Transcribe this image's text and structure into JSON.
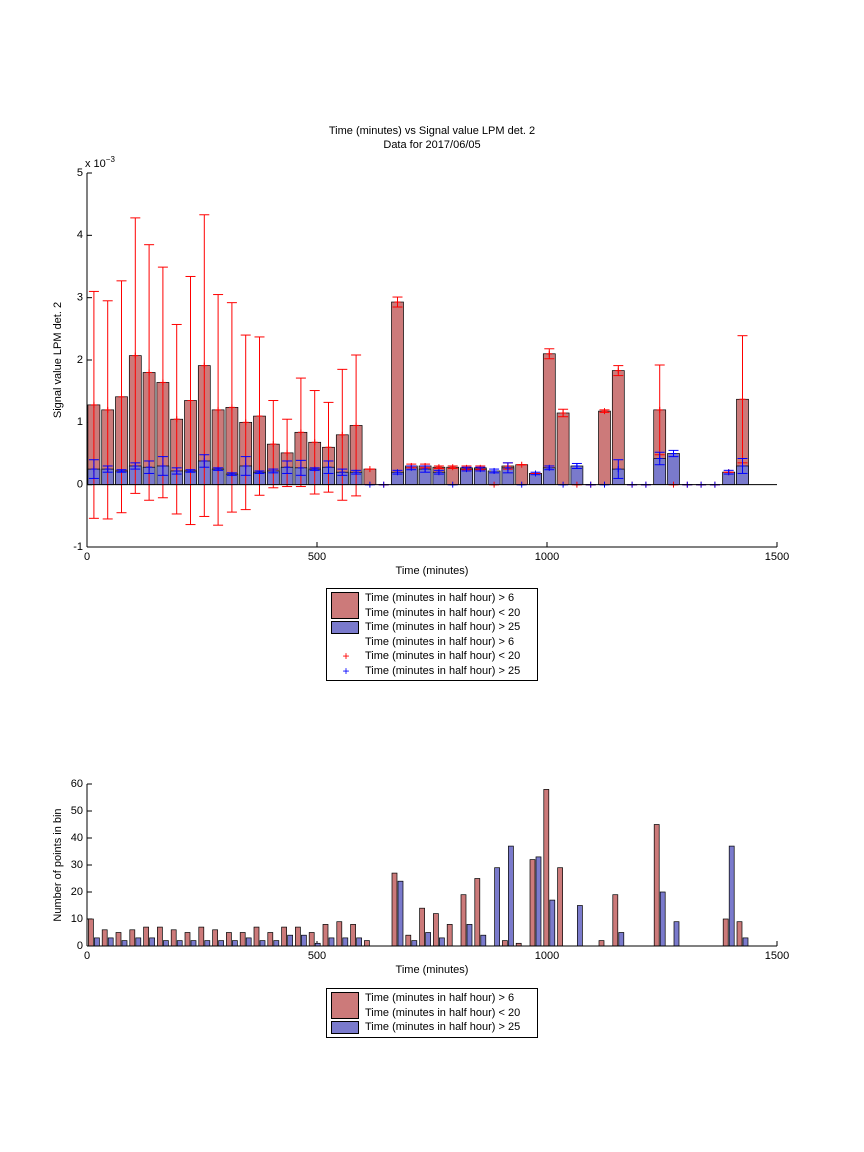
{
  "chart_data": [
    {
      "type": "bar",
      "title": "Time (minutes) vs Signal value LPM det. 2",
      "subtitle": "Data for 2017/06/05",
      "x_label": "Time (minutes)",
      "y_label": "Signal value LPM det. 2",
      "y_multiplier": {
        "base": "x 10",
        "exponent": "−3"
      },
      "xlim": [
        0,
        1500
      ],
      "xticks": [
        0,
        500,
        1000,
        1500
      ],
      "ylim": [
        -1,
        5
      ],
      "yticks": [
        -1,
        0,
        1,
        2,
        3,
        4,
        5
      ],
      "x": [
        15,
        45,
        75,
        105,
        135,
        165,
        195,
        225,
        255,
        285,
        315,
        345,
        375,
        405,
        435,
        465,
        495,
        525,
        555,
        585,
        615,
        645,
        675,
        705,
        735,
        765,
        795,
        825,
        855,
        885,
        915,
        945,
        975,
        1005,
        1035,
        1065,
        1095,
        1125,
        1155,
        1185,
        1215,
        1245,
        1275,
        1305,
        1335,
        1365,
        1395,
        1425
      ],
      "series": [
        {
          "name": "Time (minutes in half hour) > 6\nTime (minutes in half hour) < 20",
          "kind": "bar",
          "color": "#cc7a7a",
          "error_color": "#ff0000",
          "values": [
            1.28,
            1.2,
            1.41,
            2.07,
            1.8,
            1.64,
            1.05,
            1.35,
            1.91,
            1.2,
            1.24,
            1.0,
            1.1,
            0.65,
            0.51,
            0.84,
            0.68,
            0.6,
            0.8,
            0.95,
            0.25,
            0,
            2.93,
            0.3,
            0.3,
            0.28,
            0.28,
            0.27,
            0.27,
            0,
            0.3,
            0.32,
            0.18,
            2.1,
            1.15,
            0,
            0,
            1.18,
            1.83,
            0,
            0,
            1.2,
            0,
            0,
            0,
            0,
            0.2,
            1.37
          ],
          "errors": [
            1.82,
            1.75,
            1.86,
            2.21,
            2.05,
            1.85,
            1.52,
            1.99,
            2.42,
            1.85,
            1.68,
            1.4,
            1.27,
            0.7,
            0.54,
            0.87,
            0.83,
            0.72,
            1.05,
            1.13,
            0,
            0,
            0.08,
            0.03,
            0.03,
            0.02,
            0.02,
            0.03,
            0.03,
            0,
            0.05,
            0,
            0,
            0.08,
            0.06,
            0,
            0,
            0.02,
            0.08,
            0,
            0,
            0.72,
            0,
            0,
            0,
            0,
            0,
            1.02
          ]
        },
        {
          "name": "Time (minutes in half hour) > 25",
          "kind": "bar",
          "color": "#7a7acc",
          "error_color": "#0000ff",
          "values": [
            0.25,
            0.25,
            0.22,
            0.3,
            0.28,
            0.3,
            0.22,
            0.22,
            0.38,
            0.25,
            0.17,
            0.3,
            0.2,
            0.22,
            0.28,
            0.27,
            0.25,
            0.28,
            0.2,
            0.2,
            0,
            0,
            0.2,
            0.27,
            0.25,
            0.2,
            0,
            0.25,
            0.25,
            0.22,
            0.27,
            0,
            0.18,
            0.27,
            0,
            0.3,
            0,
            0,
            0.25,
            0,
            0,
            0.42,
            0.5,
            0,
            0,
            0,
            0.2,
            0.3
          ],
          "errors": [
            0.15,
            0.05,
            0.02,
            0.05,
            0.1,
            0.15,
            0.05,
            0.02,
            0.1,
            0.02,
            0.02,
            0.15,
            0.02,
            0.03,
            0.1,
            0.12,
            0.02,
            0.1,
            0.05,
            0.03,
            0,
            0,
            0.03,
            0.03,
            0.05,
            0.03,
            0,
            0.03,
            0.03,
            0.03,
            0.08,
            0,
            0.02,
            0.03,
            0,
            0.04,
            0,
            0,
            0.15,
            0,
            0,
            0.1,
            0.05,
            0,
            0,
            0,
            0.03,
            0.12
          ]
        },
        {
          "name": "Time (minutes in half hour) > 6\nTime (minutes in half hour) < 20",
          "kind": "marker",
          "color": "#ff0000",
          "values": [
            1.28,
            1.2,
            1.41,
            2.07,
            1.8,
            1.64,
            1.05,
            1.35,
            1.91,
            1.2,
            1.24,
            1.0,
            1.1,
            0.65,
            0.51,
            0.84,
            0.68,
            0.6,
            0.8,
            0.95,
            0.25,
            0,
            2.93,
            0.3,
            0.3,
            0.28,
            0.28,
            0.27,
            0.27,
            0,
            0.3,
            0.32,
            0.18,
            2.1,
            1.15,
            0,
            0,
            1.18,
            1.83,
            0,
            0,
            1.2,
            0,
            0,
            0,
            0,
            0.2,
            1.37
          ]
        },
        {
          "name": "Time (minutes in half hour) > 25",
          "kind": "marker",
          "color": "#0000ff",
          "values": [
            0.25,
            0.25,
            0.22,
            0.3,
            0.28,
            0.3,
            0.22,
            0.22,
            0.38,
            0.25,
            0.17,
            0.3,
            0.2,
            0.22,
            0.28,
            0.27,
            0.25,
            0.28,
            0.2,
            0.2,
            0,
            0,
            0.2,
            0.27,
            0.25,
            0.2,
            0,
            0.25,
            0.25,
            0.22,
            0.27,
            0,
            0.18,
            0.27,
            0,
            0.3,
            0,
            0,
            0.25,
            0,
            0,
            0.42,
            0.5,
            0,
            0,
            0,
            0.2,
            0.3
          ]
        }
      ]
    },
    {
      "type": "bar",
      "x_label": "Time (minutes)",
      "y_label": "Number of points in bin",
      "xlim": [
        0,
        1500
      ],
      "xticks": [
        0,
        500,
        1000,
        1500
      ],
      "ylim": [
        0,
        60
      ],
      "yticks": [
        0,
        10,
        20,
        30,
        40,
        50,
        60
      ],
      "x": [
        15,
        45,
        75,
        105,
        135,
        165,
        195,
        225,
        255,
        285,
        315,
        345,
        375,
        405,
        435,
        465,
        495,
        525,
        555,
        585,
        615,
        645,
        675,
        705,
        735,
        765,
        795,
        825,
        855,
        885,
        915,
        945,
        975,
        1005,
        1035,
        1065,
        1095,
        1125,
        1155,
        1185,
        1215,
        1245,
        1275,
        1305,
        1335,
        1365,
        1395,
        1425
      ],
      "series": [
        {
          "name": "Time (minutes in half hour) > 6\nTime (minutes in half hour) < 20",
          "kind": "bar",
          "color": "#cc7a7a",
          "values": [
            10,
            6,
            5,
            6,
            7,
            7,
            6,
            5,
            7,
            6,
            5,
            5,
            7,
            5,
            7,
            7,
            5,
            8,
            9,
            8,
            2,
            0,
            27,
            4,
            14,
            12,
            8,
            19,
            25,
            0,
            2,
            1,
            32,
            58,
            29,
            0,
            0,
            2,
            19,
            0,
            0,
            45,
            0,
            0,
            0,
            0,
            10,
            9
          ]
        },
        {
          "name": "Time (minutes in half hour) > 25",
          "kind": "bar",
          "color": "#7a7acc",
          "values": [
            3,
            3,
            2,
            3,
            3,
            2,
            2,
            2,
            2,
            2,
            2,
            3,
            2,
            2,
            4,
            4,
            1,
            3,
            3,
            3,
            0,
            0,
            24,
            2,
            5,
            3,
            0,
            8,
            4,
            29,
            37,
            0,
            33,
            17,
            0,
            15,
            0,
            0,
            5,
            0,
            0,
            20,
            9,
            0,
            0,
            0,
            37,
            3
          ]
        }
      ]
    }
  ]
}
